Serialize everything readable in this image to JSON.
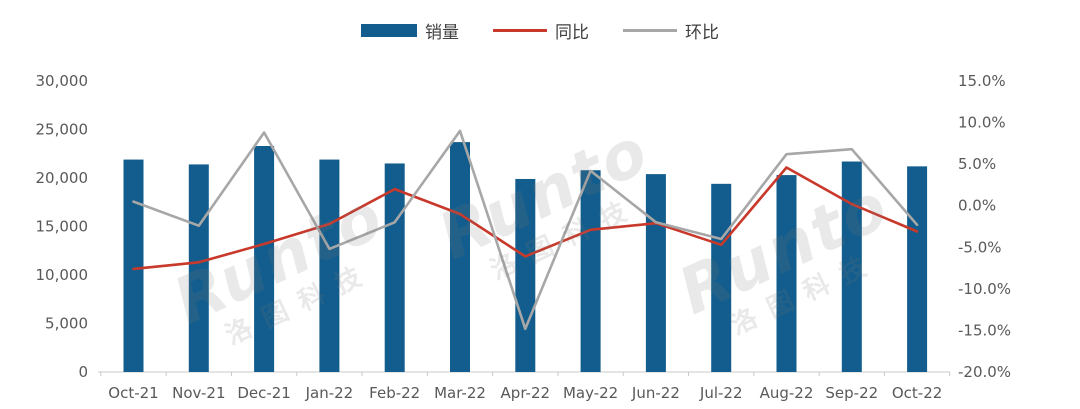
{
  "legend": [
    {
      "label": "销量",
      "type": "bar",
      "color": "#125d8d"
    },
    {
      "label": "同比",
      "type": "line",
      "color": "#c8392b"
    },
    {
      "label": "环比",
      "type": "line",
      "color": "#a7a7a7"
    }
  ],
  "watermark": {
    "brand": "Runto",
    "cn": "洛图科技"
  },
  "chart_data": {
    "type": "bar",
    "subtype": "bar-line combo, dual axis",
    "title": "",
    "categories": [
      "Oct-21",
      "Nov-21",
      "Dec-21",
      "Jan-22",
      "Feb-22",
      "Mar-22",
      "Apr-22",
      "May-22",
      "Jun-22",
      "Jul-22",
      "Aug-22",
      "Sep-22",
      "Oct-22"
    ],
    "series": [
      {
        "name": "销量",
        "type": "bar",
        "axis": "left",
        "color": "#125d8d",
        "values": [
          21900,
          21400,
          23300,
          21900,
          21500,
          23700,
          19900,
          20800,
          20400,
          19400,
          20300,
          21700,
          21200
        ]
      },
      {
        "name": "同比",
        "type": "line",
        "axis": "right",
        "color": "#c8392b",
        "values": [
          -7.6,
          -6.8,
          -4.6,
          -2.2,
          2.0,
          -1.0,
          -6.1,
          -2.9,
          -2.1,
          -4.7,
          4.6,
          0.2,
          -3.1
        ]
      },
      {
        "name": "环比",
        "type": "line",
        "axis": "right",
        "color": "#a7a7a7",
        "values": [
          0.5,
          -2.4,
          8.8,
          -5.2,
          -2.0,
          9.0,
          -14.8,
          4.2,
          -2.0,
          -4.0,
          6.2,
          6.8,
          -2.3
        ]
      }
    ],
    "left_axis": {
      "min": 0,
      "max": 30000,
      "step": 5000,
      "tick_labels": [
        "0",
        "5,000",
        "10,000",
        "15,000",
        "20,000",
        "25,000",
        "30,000"
      ]
    },
    "right_axis": {
      "min": -20,
      "max": 15,
      "step": 5,
      "tick_labels": [
        "-20.0%",
        "-15.0%",
        "-10.0%",
        "-5.0%",
        "0.0%",
        "5.0%",
        "10.0%",
        "15.0%"
      ]
    },
    "grid": false,
    "legend_position": "top"
  }
}
